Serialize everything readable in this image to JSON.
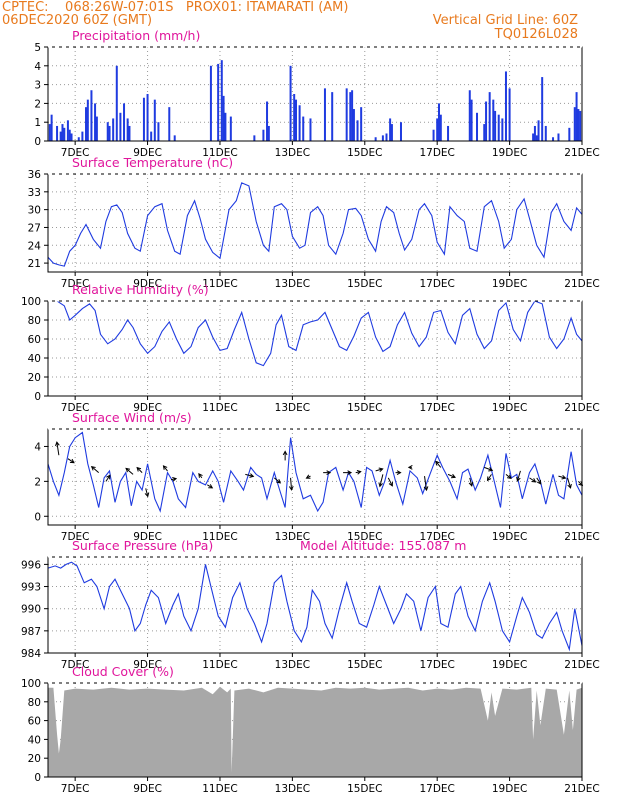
{
  "header": {
    "line1_left": "CPTEC:    068:26W-07:01S   PROX01: ITAMARATI (AM)",
    "line2_left": "06DEC2020 60Z (GMT)",
    "line2_right": "Vertical Grid Line: 60Z",
    "line3_right": "TQ0126L028"
  },
  "colors": {
    "header": "#e87a1e",
    "title": "#e0169c",
    "series": "#1f3be0",
    "cloud": "#a8a8a8",
    "grid": "#9a9a9a"
  },
  "x_axis": {
    "tick_labels": [
      "7DEC",
      "9DEC",
      "11DEC",
      "13DEC",
      "15DEC",
      "17DEC",
      "19DEC",
      "21DEC"
    ],
    "tick_days": [
      7,
      9,
      11,
      13,
      15,
      17,
      19,
      21
    ],
    "range_days": [
      6.25,
      21.0
    ]
  },
  "chart_data": [
    {
      "id": "precip",
      "type": "bar",
      "title": "Precipitation (mm/h)",
      "ylim": [
        0,
        5
      ],
      "yticks": [
        0,
        1,
        2,
        3,
        4,
        5
      ],
      "x": [
        6.3,
        6.35,
        6.5,
        6.6,
        6.65,
        6.7,
        6.8,
        6.85,
        6.9,
        7.1,
        7.2,
        7.3,
        7.35,
        7.45,
        7.55,
        7.6,
        7.9,
        7.95,
        8.05,
        8.15,
        8.25,
        8.35,
        8.45,
        8.5,
        8.9,
        9.0,
        9.1,
        9.2,
        9.3,
        9.6,
        9.75,
        10.75,
        10.95,
        11.05,
        11.1,
        11.15,
        11.3,
        11.95,
        12.2,
        12.3,
        12.35,
        12.95,
        13.05,
        13.1,
        13.2,
        13.3,
        13.5,
        13.9,
        14.1,
        14.5,
        14.6,
        14.65,
        14.7,
        14.8,
        14.9,
        15.3,
        15.5,
        15.6,
        15.7,
        15.75,
        16.0,
        16.9,
        17.0,
        17.05,
        17.1,
        17.3,
        17.9,
        17.95,
        18.1,
        18.3,
        18.35,
        18.45,
        18.55,
        18.6,
        18.7,
        18.8,
        18.9,
        19.0,
        19.65,
        19.7,
        19.75,
        19.8,
        19.9,
        20.0,
        20.2,
        20.35,
        20.65,
        20.8,
        20.85,
        20.9,
        20.95
      ],
      "values": [
        0.9,
        1.4,
        0.8,
        0.5,
        0.9,
        0.7,
        1.1,
        0.6,
        0.4,
        0.2,
        0.5,
        1.8,
        2.2,
        2.7,
        2.0,
        1.3,
        1.0,
        0.8,
        1.2,
        4.0,
        1.5,
        2.0,
        1.2,
        0.8,
        2.3,
        2.5,
        0.5,
        2.2,
        1.0,
        1.8,
        0.3,
        4.0,
        4.1,
        4.3,
        2.4,
        1.5,
        1.3,
        0.3,
        0.6,
        2.1,
        0.8,
        4.0,
        2.5,
        2.2,
        1.9,
        1.3,
        1.2,
        2.8,
        2.6,
        2.8,
        2.6,
        2.7,
        1.7,
        1.1,
        1.8,
        0.2,
        0.3,
        0.4,
        1.2,
        0.9,
        1.0,
        0.6,
        1.2,
        2.0,
        1.4,
        0.8,
        2.7,
        2.2,
        1.5,
        0.9,
        2.1,
        2.6,
        2.2,
        1.6,
        1.4,
        1.2,
        3.7,
        2.8,
        0.4,
        0.8,
        0.3,
        1.1,
        3.4,
        0.8,
        0.2,
        0.4,
        0.7,
        1.8,
        2.6,
        1.7,
        1.6
      ]
    },
    {
      "id": "temp",
      "type": "line",
      "title": "Surface Temperature (nC)",
      "ylim": [
        19.5,
        36
      ],
      "yticks": [
        21,
        24,
        27,
        30,
        33,
        36
      ],
      "x": [
        6.25,
        6.4,
        6.55,
        6.7,
        6.85,
        7.0,
        7.15,
        7.3,
        7.5,
        7.7,
        7.85,
        8.0,
        8.15,
        8.3,
        8.45,
        8.65,
        8.8,
        9.0,
        9.2,
        9.4,
        9.55,
        9.75,
        9.9,
        10.1,
        10.3,
        10.45,
        10.6,
        10.8,
        11.0,
        11.25,
        11.45,
        11.6,
        11.8,
        12.0,
        12.2,
        12.35,
        12.5,
        12.7,
        12.85,
        13.0,
        13.2,
        13.35,
        13.5,
        13.7,
        13.85,
        14.0,
        14.2,
        14.4,
        14.55,
        14.75,
        14.9,
        15.1,
        15.3,
        15.45,
        15.6,
        15.8,
        15.95,
        16.1,
        16.3,
        16.5,
        16.65,
        16.85,
        17.0,
        17.2,
        17.35,
        17.55,
        17.75,
        17.9,
        18.1,
        18.3,
        18.5,
        18.7,
        18.85,
        19.05,
        19.2,
        19.4,
        19.55,
        19.75,
        19.95,
        20.15,
        20.3,
        20.5,
        20.7,
        20.85,
        21.0
      ],
      "values": [
        22.0,
        21.0,
        20.7,
        20.5,
        23.0,
        24.0,
        26.0,
        27.5,
        25.0,
        23.5,
        28.0,
        30.5,
        30.8,
        29.5,
        26.0,
        23.5,
        23.0,
        29.0,
        30.5,
        31.0,
        26.5,
        23.0,
        22.5,
        29.0,
        31.5,
        28.5,
        25.0,
        22.8,
        21.8,
        30.0,
        31.5,
        34.5,
        34.0,
        28.0,
        24.0,
        23.0,
        30.5,
        31.0,
        30.0,
        25.5,
        23.5,
        24.0,
        29.5,
        30.5,
        29.0,
        24.0,
        22.5,
        26.0,
        30.0,
        30.2,
        29.0,
        25.0,
        23.0,
        28.0,
        30.5,
        29.5,
        26.0,
        23.2,
        25.0,
        30.0,
        31.0,
        29.0,
        24.5,
        22.5,
        30.5,
        29.0,
        28.0,
        23.5,
        23.0,
        30.5,
        31.5,
        28.0,
        23.5,
        25.0,
        30.0,
        31.8,
        28.5,
        24.0,
        22.0,
        29.5,
        31.0,
        28.0,
        26.5,
        30.3,
        29.2
      ]
    },
    {
      "id": "rh",
      "type": "line",
      "title": "Relative Humidity (%)",
      "ylim": [
        0,
        100
      ],
      "yticks": [
        0,
        20,
        40,
        60,
        80,
        100
      ],
      "x": [
        6.25,
        6.5,
        6.7,
        6.85,
        7.0,
        7.2,
        7.4,
        7.55,
        7.7,
        7.9,
        8.1,
        8.3,
        8.45,
        8.6,
        8.8,
        9.0,
        9.2,
        9.4,
        9.6,
        9.8,
        10.0,
        10.2,
        10.4,
        10.6,
        10.8,
        11.0,
        11.2,
        11.4,
        11.6,
        11.8,
        12.0,
        12.2,
        12.4,
        12.55,
        12.7,
        12.9,
        13.1,
        13.3,
        13.5,
        13.7,
        13.9,
        14.1,
        14.3,
        14.5,
        14.7,
        14.9,
        15.1,
        15.3,
        15.5,
        15.7,
        15.9,
        16.1,
        16.3,
        16.5,
        16.7,
        16.9,
        17.1,
        17.3,
        17.5,
        17.7,
        17.9,
        18.1,
        18.3,
        18.5,
        18.7,
        18.9,
        19.1,
        19.3,
        19.5,
        19.7,
        19.9,
        20.1,
        20.3,
        20.5,
        20.7,
        20.85,
        21.0
      ],
      "values": [
        100,
        100,
        95,
        80,
        85,
        92,
        97,
        90,
        65,
        55,
        60,
        70,
        80,
        72,
        55,
        45,
        52,
        68,
        78,
        60,
        45,
        52,
        72,
        80,
        62,
        48,
        50,
        70,
        88,
        60,
        35,
        32,
        45,
        75,
        85,
        52,
        48,
        75,
        78,
        80,
        88,
        70,
        52,
        48,
        63,
        82,
        88,
        62,
        47,
        52,
        75,
        88,
        66,
        52,
        62,
        88,
        90,
        67,
        55,
        85,
        92,
        65,
        50,
        58,
        90,
        98,
        70,
        58,
        88,
        100,
        97,
        62,
        50,
        60,
        82,
        65,
        58
      ]
    },
    {
      "id": "wind",
      "type": "line",
      "title": "Surface Wind (m/s)",
      "ylim": [
        -0.5,
        5
      ],
      "yticks": [
        0,
        2,
        4
      ],
      "x": [
        6.25,
        6.4,
        6.55,
        6.7,
        6.85,
        7.0,
        7.2,
        7.35,
        7.5,
        7.65,
        7.8,
        7.95,
        8.1,
        8.25,
        8.4,
        8.55,
        8.7,
        8.85,
        9.0,
        9.2,
        9.35,
        9.55,
        9.7,
        9.85,
        10.05,
        10.25,
        10.4,
        10.6,
        10.8,
        10.95,
        11.1,
        11.3,
        11.5,
        11.65,
        11.85,
        12.0,
        12.15,
        12.3,
        12.5,
        12.65,
        12.8,
        12.95,
        13.1,
        13.3,
        13.5,
        13.7,
        13.85,
        14.0,
        14.2,
        14.4,
        14.55,
        14.7,
        14.9,
        15.05,
        15.2,
        15.4,
        15.55,
        15.7,
        15.85,
        16.05,
        16.25,
        16.45,
        16.6,
        16.8,
        17.0,
        17.15,
        17.35,
        17.55,
        17.7,
        17.85,
        18.05,
        18.2,
        18.4,
        18.6,
        18.75,
        18.9,
        19.05,
        19.2,
        19.35,
        19.55,
        19.7,
        19.85,
        20.0,
        20.2,
        20.35,
        20.5,
        20.7,
        20.85,
        21.0
      ],
      "values": [
        3.0,
        2.0,
        1.2,
        2.5,
        4.0,
        4.5,
        4.8,
        3.0,
        1.8,
        0.5,
        2.2,
        2.6,
        0.8,
        2.0,
        2.5,
        0.6,
        2.0,
        1.5,
        3.0,
        1.0,
        0.3,
        2.5,
        2.0,
        1.0,
        0.5,
        2.5,
        2.0,
        1.8,
        2.6,
        2.0,
        0.8,
        2.6,
        2.0,
        1.5,
        2.8,
        2.4,
        2.2,
        1.0,
        2.5,
        1.5,
        0.5,
        4.5,
        2.5,
        1.0,
        1.2,
        0.3,
        0.8,
        2.5,
        2.8,
        1.5,
        2.5,
        2.0,
        0.5,
        2.8,
        2.6,
        1.2,
        2.0,
        3.2,
        2.0,
        0.7,
        2.6,
        2.2,
        1.3,
        2.4,
        3.5,
        2.8,
        2.0,
        1.0,
        2.5,
        2.7,
        1.5,
        2.2,
        3.5,
        1.8,
        0.5,
        3.6,
        2.2,
        2.4,
        1.0,
        2.5,
        3.0,
        2.0,
        0.7,
        2.4,
        1.2,
        1.0,
        3.7,
        1.8,
        1.2
      ],
      "arrows": [
        {
          "x": 6.55,
          "y": 3.5,
          "dx": -2,
          "dy": -13
        },
        {
          "x": 6.8,
          "y": 3.3,
          "dx": 6,
          "dy": 4
        },
        {
          "x": 7.65,
          "y": 2.5,
          "dx": -7,
          "dy": -6
        },
        {
          "x": 7.85,
          "y": 2.0,
          "dx": 4,
          "dy": -6
        },
        {
          "x": 8.6,
          "y": 2.4,
          "dx": -7,
          "dy": -6
        },
        {
          "x": 8.85,
          "y": 2.5,
          "dx": -5,
          "dy": -5
        },
        {
          "x": 8.95,
          "y": 1.6,
          "dx": 2,
          "dy": 8
        },
        {
          "x": 9.55,
          "y": 2.6,
          "dx": -4,
          "dy": -5
        },
        {
          "x": 9.65,
          "y": 2.1,
          "dx": 5,
          "dy": -1
        },
        {
          "x": 10.5,
          "y": 2.2,
          "dx": -3,
          "dy": -4
        },
        {
          "x": 10.65,
          "y": 1.8,
          "dx": 5,
          "dy": 3
        },
        {
          "x": 11.7,
          "y": 2.4,
          "dx": 8,
          "dy": 2
        },
        {
          "x": 12.5,
          "y": 2.2,
          "dx": 6,
          "dy": 5
        },
        {
          "x": 12.8,
          "y": 3.2,
          "dx": 0,
          "dy": -9
        },
        {
          "x": 12.95,
          "y": 2.2,
          "dx": 1,
          "dy": 12
        },
        {
          "x": 13.5,
          "y": 2.3,
          "dx": -4,
          "dy": 2
        },
        {
          "x": 13.85,
          "y": 2.5,
          "dx": 7,
          "dy": 0
        },
        {
          "x": 14.4,
          "y": 2.5,
          "dx": 8,
          "dy": 0
        },
        {
          "x": 14.75,
          "y": 2.5,
          "dx": 5,
          "dy": -1
        },
        {
          "x": 15.3,
          "y": 2.6,
          "dx": 7,
          "dy": -2
        },
        {
          "x": 15.5,
          "y": 2.4,
          "dx": -3,
          "dy": 12
        },
        {
          "x": 15.65,
          "y": 2.2,
          "dx": 4,
          "dy": 8
        },
        {
          "x": 15.85,
          "y": 2.5,
          "dx": 5,
          "dy": 0
        },
        {
          "x": 16.3,
          "y": 2.8,
          "dx": -3,
          "dy": 0
        },
        {
          "x": 16.65,
          "y": 2.3,
          "dx": 2,
          "dy": 14
        },
        {
          "x": 17.1,
          "y": 2.8,
          "dx": -5,
          "dy": -6
        },
        {
          "x": 17.3,
          "y": 2.4,
          "dx": 7,
          "dy": 3
        },
        {
          "x": 17.9,
          "y": 2.2,
          "dx": 2,
          "dy": 8
        },
        {
          "x": 18.3,
          "y": 2.8,
          "dx": 8,
          "dy": 3
        },
        {
          "x": 18.5,
          "y": 2.4,
          "dx": -4,
          "dy": 6
        },
        {
          "x": 18.9,
          "y": 2.4,
          "dx": 5,
          "dy": 4
        },
        {
          "x": 19.3,
          "y": 2.6,
          "dx": -3,
          "dy": 10
        },
        {
          "x": 19.55,
          "y": 2.2,
          "dx": 6,
          "dy": 4
        },
        {
          "x": 19.75,
          "y": 2.2,
          "dx": 4,
          "dy": 6
        },
        {
          "x": 20.35,
          "y": 2.3,
          "dx": 7,
          "dy": 2
        },
        {
          "x": 20.6,
          "y": 2.2,
          "dx": 3,
          "dy": 10
        },
        {
          "x": 20.9,
          "y": 2.0,
          "dx": 4,
          "dy": 4
        }
      ]
    },
    {
      "id": "pressure",
      "type": "line",
      "title": "Surface Pressure (hPa)",
      "subtitle": "Model Altitude: 155.087 m",
      "ylim": [
        984,
        997
      ],
      "yticks": [
        984,
        987,
        990,
        993,
        996
      ],
      "x": [
        6.25,
        6.45,
        6.6,
        6.75,
        6.9,
        7.05,
        7.25,
        7.45,
        7.6,
        7.8,
        7.95,
        8.1,
        8.3,
        8.5,
        8.65,
        8.8,
        8.95,
        9.1,
        9.3,
        9.5,
        9.7,
        9.85,
        10.0,
        10.2,
        10.4,
        10.6,
        10.75,
        10.95,
        11.15,
        11.35,
        11.55,
        11.75,
        11.95,
        12.15,
        12.3,
        12.5,
        12.7,
        12.85,
        13.05,
        13.25,
        13.4,
        13.55,
        13.75,
        13.9,
        14.1,
        14.3,
        14.5,
        14.65,
        14.85,
        15.05,
        15.25,
        15.4,
        15.6,
        15.8,
        16.0,
        16.15,
        16.35,
        16.55,
        16.75,
        16.95,
        17.1,
        17.3,
        17.5,
        17.65,
        17.85,
        18.05,
        18.25,
        18.45,
        18.6,
        18.8,
        19.0,
        19.2,
        19.35,
        19.55,
        19.75,
        19.9,
        20.1,
        20.3,
        20.45,
        20.65,
        20.8,
        21.0
      ],
      "values": [
        995.5,
        995.8,
        995.5,
        996.0,
        996.3,
        995.8,
        993.5,
        994.0,
        993.0,
        990.0,
        993.0,
        994.0,
        992.0,
        990.0,
        987.0,
        988.0,
        990.5,
        992.5,
        991.5,
        988.0,
        990.5,
        992.0,
        989.0,
        987.0,
        990.0,
        996.0,
        993.0,
        989.0,
        987.5,
        991.5,
        993.5,
        990.0,
        988.0,
        985.5,
        988.0,
        993.5,
        994.5,
        991.0,
        987.0,
        985.5,
        987.5,
        992.5,
        991.0,
        988.0,
        986.0,
        990.0,
        993.5,
        991.0,
        988.0,
        987.5,
        990.5,
        993.0,
        990.5,
        988.0,
        990.0,
        992.0,
        991.0,
        987.0,
        991.5,
        993.0,
        988.0,
        987.5,
        992.0,
        993.0,
        989.0,
        987.0,
        991.0,
        993.5,
        991.0,
        987.0,
        985.5,
        989.0,
        991.5,
        989.5,
        986.5,
        986.0,
        988.0,
        989.5,
        987.0,
        984.5,
        990.0,
        985.0
      ]
    },
    {
      "id": "cloud",
      "type": "area",
      "title": "Cloud Cover (%)",
      "ylim": [
        0,
        100
      ],
      "yticks": [
        0,
        20,
        40,
        60,
        80,
        100
      ],
      "x": [
        6.25,
        6.4,
        6.5,
        6.55,
        6.6,
        6.7,
        7.0,
        7.5,
        8.0,
        8.5,
        9.0,
        9.5,
        10.0,
        10.5,
        10.8,
        11.0,
        11.2,
        11.3,
        11.32,
        11.4,
        11.8,
        12.2,
        12.6,
        13.0,
        13.4,
        13.8,
        14.2,
        14.6,
        15.0,
        15.4,
        15.8,
        16.2,
        16.6,
        17.0,
        17.4,
        17.8,
        18.2,
        18.4,
        18.5,
        18.6,
        18.8,
        19.2,
        19.6,
        19.65,
        19.75,
        19.85,
        20.0,
        20.3,
        20.5,
        20.65,
        20.75,
        20.85,
        21.0
      ],
      "values": [
        95,
        95,
        45,
        25,
        40,
        92,
        94,
        93,
        95,
        93,
        94,
        93,
        92,
        95,
        88,
        96,
        90,
        94,
        5,
        92,
        94,
        90,
        95,
        94,
        93,
        92,
        95,
        94,
        95,
        93,
        94,
        95,
        92,
        94,
        93,
        95,
        94,
        60,
        90,
        65,
        94,
        93,
        95,
        40,
        92,
        55,
        94,
        93,
        45,
        92,
        50,
        93,
        95
      ]
    }
  ]
}
